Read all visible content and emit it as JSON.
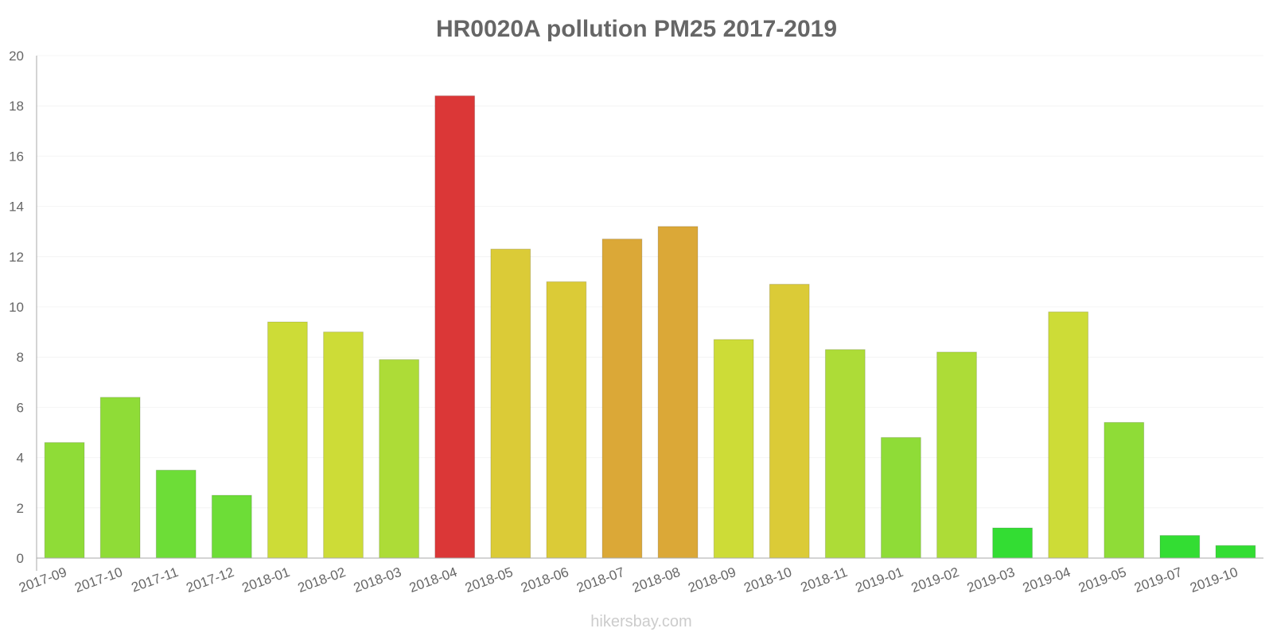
{
  "chart_data": {
    "type": "bar",
    "title": "HR0020A pollution PM25 2017-2019",
    "xlabel": "",
    "ylabel": "",
    "ylim": [
      0,
      20
    ],
    "yticks": [
      0,
      2,
      4,
      6,
      8,
      10,
      12,
      14,
      16,
      18,
      20
    ],
    "grid": true,
    "categories": [
      "2017-09",
      "2017-10",
      "2017-11",
      "2017-12",
      "2018-01",
      "2018-02",
      "2018-03",
      "2018-04",
      "2018-05",
      "2018-06",
      "2018-07",
      "2018-08",
      "2018-09",
      "2018-10",
      "2018-11",
      "2019-01",
      "2019-02",
      "2019-03",
      "2019-04",
      "2019-05",
      "2019-07",
      "2019-10"
    ],
    "values": [
      4.6,
      6.4,
      3.5,
      2.5,
      9.4,
      9.0,
      7.9,
      18.4,
      12.3,
      11.0,
      12.7,
      13.2,
      8.7,
      10.9,
      8.3,
      4.8,
      8.2,
      1.2,
      9.8,
      5.4,
      0.9,
      0.5
    ],
    "colors": [
      "#8fdc37",
      "#8fdc37",
      "#6ddd37",
      "#6ddd37",
      "#cddc37",
      "#cddc37",
      "#addc37",
      "#db3737",
      "#dbcb37",
      "#dbcb37",
      "#dba837",
      "#dba837",
      "#cddc37",
      "#dbcb37",
      "#addc37",
      "#8fdc37",
      "#addc37",
      "#33dd33",
      "#cddc37",
      "#8fdc37",
      "#33dd33",
      "#33dd33"
    ]
  },
  "watermark": "hikersbay.com"
}
